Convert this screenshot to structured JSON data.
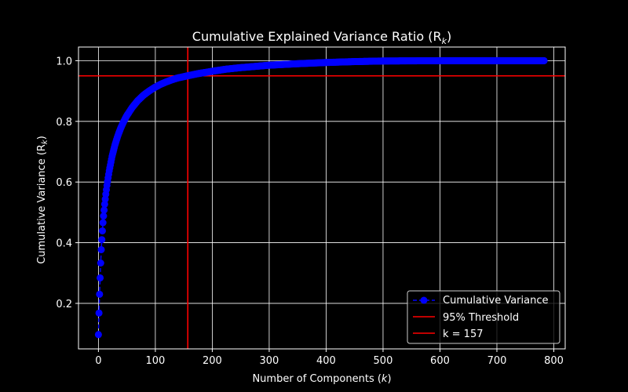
{
  "chart_data": {
    "type": "line",
    "title": "Cumulative Explained Variance Ratio (R",
    "title_sub": "k",
    "title_end": ")",
    "xlabel": "Number of Components (",
    "xlabel_var": "k",
    "xlabel_end": ")",
    "ylabel": "Cumulative Variance (R",
    "ylabel_sub": "k",
    "ylabel_end": ")",
    "xlim": [
      -35,
      820
    ],
    "ylim": [
      0.05,
      1.045
    ],
    "xticks": [
      0,
      100,
      200,
      300,
      400,
      500,
      600,
      700,
      800
    ],
    "yticks": [
      0.2,
      0.4,
      0.6,
      0.8,
      1.0
    ],
    "xtick_labels": [
      "0",
      "100",
      "200",
      "300",
      "400",
      "500",
      "600",
      "700",
      "800"
    ],
    "ytick_labels": [
      "0.2",
      "0.4",
      "0.6",
      "0.8",
      "1.0"
    ],
    "grid": true,
    "background": "#000000",
    "series": [
      {
        "name": "Cumulative Variance",
        "color": "#0000ff",
        "marker": "circle",
        "linestyle": "dashed",
        "n_components": 784,
        "x": [
          1,
          2,
          3,
          4,
          5,
          6,
          7,
          8,
          9,
          10,
          12,
          14,
          16,
          18,
          20,
          25,
          30,
          35,
          40,
          45,
          50,
          60,
          70,
          80,
          90,
          100,
          110,
          120,
          130,
          140,
          150,
          157,
          175,
          200,
          225,
          250,
          300,
          350,
          400,
          450,
          500,
          550,
          600,
          650,
          700,
          750,
          784
        ],
        "y": [
          0.097,
          0.168,
          0.23,
          0.284,
          0.333,
          0.377,
          0.41,
          0.439,
          0.466,
          0.488,
          0.527,
          0.56,
          0.589,
          0.614,
          0.637,
          0.685,
          0.722,
          0.752,
          0.777,
          0.798,
          0.816,
          0.845,
          0.868,
          0.886,
          0.9,
          0.912,
          0.922,
          0.93,
          0.937,
          0.943,
          0.947,
          0.95,
          0.957,
          0.965,
          0.972,
          0.977,
          0.985,
          0.99,
          0.994,
          0.997,
          0.999,
          0.9995,
          1.0,
          1.0,
          1.0,
          1.0,
          1.0
        ]
      }
    ],
    "reference_lines": [
      {
        "name": "95% Threshold",
        "orientation": "horizontal",
        "value": 0.95,
        "color": "#ff0000"
      },
      {
        "name": "k = 157",
        "orientation": "vertical",
        "value": 157,
        "color": "#ff0000"
      }
    ],
    "legend": {
      "placement": "bottom-right",
      "entries": [
        "Cumulative Variance",
        "95% Threshold",
        "k = 157"
      ]
    }
  }
}
